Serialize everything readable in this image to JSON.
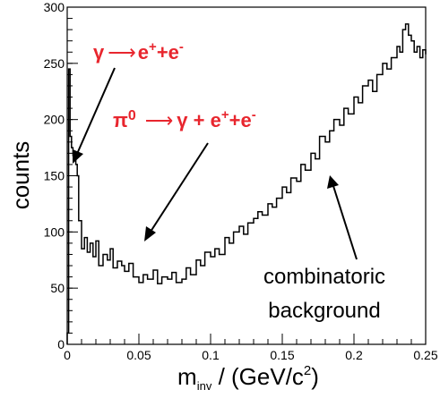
{
  "chart_data": {
    "type": "line",
    "xlabel_main": "m",
    "xlabel_sub": "inv",
    "xlabel_rest": " / (GeV/c",
    "xlabel_sup": "2",
    "xlabel_end": ")",
    "ylabel": "counts",
    "xlim": [
      0,
      0.25
    ],
    "ylim": [
      0,
      300
    ],
    "x_tick_labels": [
      {
        "value": 0,
        "label": "0"
      },
      {
        "value": 0.05,
        "label": "0.05"
      },
      {
        "value": 0.1,
        "label": "0.1"
      },
      {
        "value": 0.15,
        "label": "0.15"
      },
      {
        "value": 0.2,
        "label": "0.2"
      },
      {
        "value": 0.25,
        "label": "0.25"
      }
    ],
    "y_tick_labels": [
      {
        "value": 0,
        "label": "0"
      },
      {
        "value": 50,
        "label": "50"
      },
      {
        "value": 100,
        "label": "100"
      },
      {
        "value": 150,
        "label": "150"
      },
      {
        "value": 200,
        "label": "200"
      },
      {
        "value": 250,
        "label": "250"
      },
      {
        "value": 300,
        "label": "300"
      }
    ],
    "x_minor_step": 0.01,
    "y_minor_step": 10,
    "grid": false,
    "histogram": {
      "x": [
        0.0,
        0.001,
        0.002,
        0.003,
        0.004,
        0.005,
        0.006,
        0.007,
        0.008,
        0.01,
        0.012,
        0.014,
        0.016,
        0.018,
        0.02,
        0.022,
        0.025,
        0.028,
        0.03,
        0.032,
        0.035,
        0.038,
        0.04,
        0.043,
        0.046,
        0.05,
        0.053,
        0.056,
        0.06,
        0.063,
        0.066,
        0.07,
        0.073,
        0.076,
        0.08,
        0.083,
        0.086,
        0.09,
        0.093,
        0.096,
        0.1,
        0.103,
        0.106,
        0.11,
        0.113,
        0.116,
        0.12,
        0.123,
        0.126,
        0.13,
        0.133,
        0.136,
        0.14,
        0.143,
        0.146,
        0.15,
        0.153,
        0.156,
        0.16,
        0.163,
        0.166,
        0.17,
        0.173,
        0.176,
        0.18,
        0.183,
        0.186,
        0.19,
        0.193,
        0.196,
        0.2,
        0.203,
        0.206,
        0.21,
        0.213,
        0.216,
        0.22,
        0.223,
        0.226,
        0.23,
        0.232,
        0.234,
        0.236,
        0.238,
        0.24,
        0.242,
        0.244,
        0.246,
        0.248,
        0.25
      ],
      "y": [
        10,
        245,
        185,
        175,
        168,
        165,
        160,
        150,
        110,
        85,
        95,
        82,
        90,
        78,
        92,
        70,
        80,
        75,
        85,
        68,
        74,
        70,
        65,
        72,
        60,
        55,
        62,
        58,
        66,
        54,
        60,
        58,
        64,
        55,
        58,
        68,
        62,
        75,
        70,
        82,
        78,
        85,
        80,
        95,
        90,
        100,
        105,
        98,
        108,
        112,
        118,
        115,
        125,
        122,
        130,
        140,
        135,
        148,
        145,
        160,
        155,
        170,
        165,
        185,
        180,
        190,
        200,
        195,
        210,
        205,
        220,
        215,
        230,
        235,
        225,
        240,
        250,
        245,
        255,
        265,
        260,
        280,
        285,
        275,
        270,
        260,
        265,
        255,
        262,
        258
      ]
    },
    "annotations": {
      "gamma_conv": {
        "prefix": "γ",
        "arrow": "⟶",
        "body": "e",
        "sup1": "+",
        "mid": "+e",
        "sup2": "-"
      },
      "dalitz": {
        "prefix": "π",
        "prefix_sup": "0",
        "arrow": "⟶",
        "body": "γ + e",
        "sup1": "+",
        "mid": "+e",
        "sup2": "-"
      },
      "background_line1": "combinatoric",
      "background_line2": "background"
    }
  }
}
